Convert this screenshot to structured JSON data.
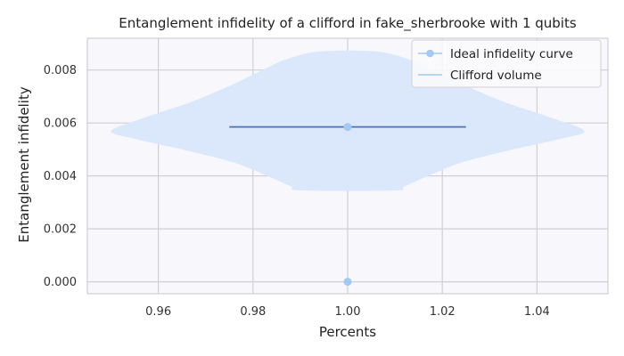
{
  "chart_data": {
    "type": "violin",
    "title": "Entanglement infidelity of a clifford in fake_sherbrooke with 1 qubits",
    "xlabel": "Percents",
    "ylabel": "Entanglement infidelity",
    "xlim": [
      0.945,
      1.055
    ],
    "ylim": [
      -0.00045,
      0.0092
    ],
    "x_ticks": [
      0.96,
      0.98,
      1.0,
      1.02,
      1.04
    ],
    "x_tick_labels": [
      "0.96",
      "0.98",
      "1.00",
      "1.02",
      "1.04"
    ],
    "y_ticks": [
      0.0,
      0.002,
      0.004,
      0.006,
      0.008
    ],
    "y_tick_labels": [
      "0.000",
      "0.002",
      "0.004",
      "0.006",
      "0.008"
    ],
    "grid": true,
    "legend_position": "top-right",
    "series": [
      {
        "name": "Ideal infidelity curve",
        "kind": "line-with-markers",
        "color": "#a1c9f4",
        "points": [
          {
            "x": 1.0,
            "y": 0.0
          },
          {
            "x": 1.0,
            "y": 0.00585
          }
        ]
      },
      {
        "name": "Clifford volume",
        "kind": "violin",
        "color": "#a1c9f4",
        "fill_color": "#dbe8fb",
        "center_x": 1.0,
        "median_line": {
          "y": 0.00585,
          "x_from": 0.975,
          "x_to": 1.025,
          "color": "#4c72b0"
        },
        "profile": [
          {
            "y": 0.00345,
            "half_width": 0.01
          },
          {
            "y": 0.0036,
            "half_width": 0.012
          },
          {
            "y": 0.004,
            "half_width": 0.017
          },
          {
            "y": 0.0045,
            "half_width": 0.024
          },
          {
            "y": 0.005,
            "half_width": 0.035
          },
          {
            "y": 0.0054,
            "half_width": 0.045
          },
          {
            "y": 0.0057,
            "half_width": 0.05
          },
          {
            "y": 0.0062,
            "half_width": 0.043
          },
          {
            "y": 0.0068,
            "half_width": 0.033
          },
          {
            "y": 0.0074,
            "half_width": 0.025
          },
          {
            "y": 0.008,
            "half_width": 0.018
          },
          {
            "y": 0.0084,
            "half_width": 0.013
          },
          {
            "y": 0.0087,
            "half_width": 0.006
          }
        ]
      }
    ]
  },
  "colors": {
    "plot_background": "#f8f8fc",
    "grid": "#cfcfd4",
    "spine": "#cfcfd4"
  }
}
